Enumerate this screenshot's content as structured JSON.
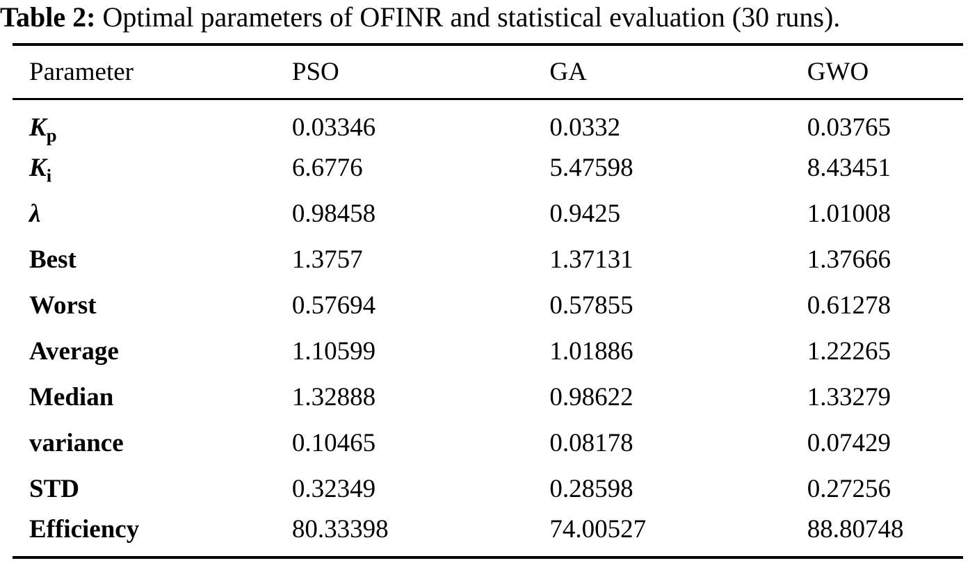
{
  "caption": {
    "label": "Table 2:",
    "text": "Optimal parameters of OFINR and statistical evaluation (30 runs)."
  },
  "table": {
    "columns": [
      "Parameter",
      "PSO",
      "GA",
      "GWO"
    ],
    "rows": [
      {
        "base": "K",
        "sub": "p",
        "math": true,
        "values": [
          "0.03346",
          "0.0332",
          "0.03765"
        ]
      },
      {
        "base": "K",
        "sub": "i",
        "math": true,
        "values": [
          "6.6776",
          "5.47598",
          "8.43451"
        ]
      },
      {
        "base": "λ",
        "sub": "",
        "math": true,
        "values": [
          "0.98458",
          "0.9425",
          "1.01008"
        ]
      },
      {
        "base": "Best",
        "sub": "",
        "math": false,
        "values": [
          "1.3757",
          "1.37131",
          "1.37666"
        ]
      },
      {
        "base": "Worst",
        "sub": "",
        "math": false,
        "values": [
          "0.57694",
          "0.57855",
          "0.61278"
        ]
      },
      {
        "base": "Average",
        "sub": "",
        "math": false,
        "values": [
          "1.10599",
          "1.01886",
          "1.22265"
        ]
      },
      {
        "base": "Median",
        "sub": "",
        "math": false,
        "values": [
          "1.32888",
          "0.98622",
          "1.33279"
        ]
      },
      {
        "base": "variance",
        "sub": "",
        "math": false,
        "values": [
          "0.10465",
          "0.08178",
          "0.07429"
        ]
      },
      {
        "base": "STD",
        "sub": "",
        "math": false,
        "values": [
          "0.32349",
          "0.28598",
          "0.27256"
        ]
      },
      {
        "base": "Efficiency",
        "sub": "",
        "math": false,
        "values": [
          "80.33398",
          "74.00527",
          "88.80748"
        ]
      }
    ]
  },
  "colors": {
    "text": "#000000",
    "background": "#ffffff",
    "rule": "#000000"
  },
  "chart_data": {
    "type": "table",
    "title": "Table 2: Optimal parameters of OFINR and statistical evaluation (30 runs).",
    "columns": [
      "Parameter",
      "PSO",
      "GA",
      "GWO"
    ],
    "rows": [
      [
        "Kp",
        0.03346,
        0.0332,
        0.03765
      ],
      [
        "Ki",
        6.6776,
        5.47598,
        8.43451
      ],
      [
        "λ",
        0.98458,
        0.9425,
        1.01008
      ],
      [
        "Best",
        1.3757,
        1.37131,
        1.37666
      ],
      [
        "Worst",
        0.57694,
        0.57855,
        0.61278
      ],
      [
        "Average",
        1.10599,
        1.01886,
        1.22265
      ],
      [
        "Median",
        1.32888,
        0.98622,
        1.33279
      ],
      [
        "variance",
        0.10465,
        0.08178,
        0.07429
      ],
      [
        "STD",
        0.32349,
        0.28598,
        0.27256
      ],
      [
        "Efficiency",
        80.33398,
        74.00527,
        88.80748
      ]
    ]
  }
}
